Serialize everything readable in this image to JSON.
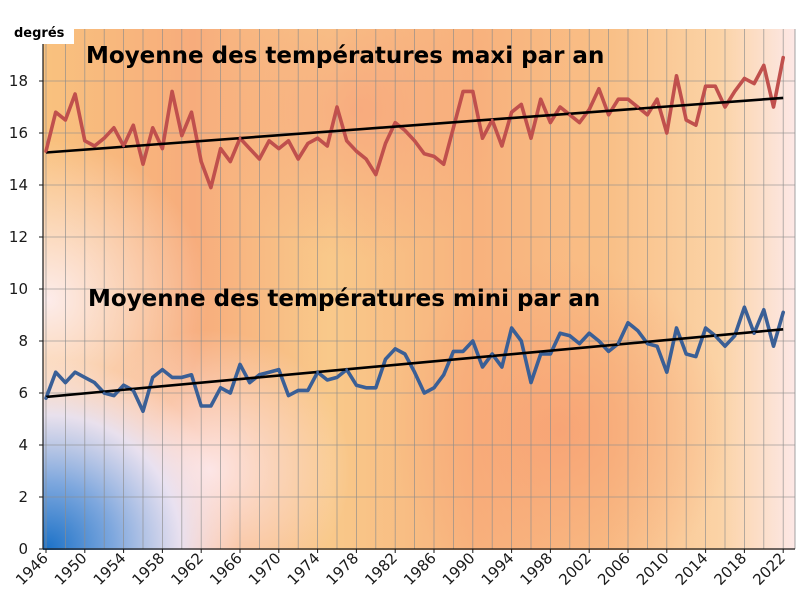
{
  "chart_data": {
    "type": "line",
    "ylabel": "degrés",
    "ylim": [
      0,
      20
    ],
    "yticks": [
      0,
      2,
      4,
      6,
      8,
      10,
      12,
      14,
      16,
      18
    ],
    "xlim": [
      1946,
      2023
    ],
    "xticks": [
      1946,
      1950,
      1954,
      1958,
      1962,
      1966,
      1970,
      1974,
      1978,
      1982,
      1986,
      1990,
      1994,
      1998,
      2002,
      2006,
      2010,
      2014,
      2018,
      2022
    ],
    "grid": true,
    "series": [
      {
        "name": "Moyenne des températures maxi par an",
        "color": "#c0504d",
        "x_start": 1946,
        "values": [
          15.3,
          16.8,
          16.5,
          17.5,
          15.7,
          15.5,
          15.8,
          16.2,
          15.5,
          16.3,
          14.8,
          16.2,
          15.4,
          17.6,
          15.9,
          16.8,
          14.9,
          13.9,
          15.4,
          14.9,
          15.8,
          15.4,
          15.0,
          15.7,
          15.4,
          15.7,
          15.0,
          15.6,
          15.8,
          15.5,
          17.0,
          15.7,
          15.3,
          15.0,
          14.4,
          15.6,
          16.4,
          16.1,
          15.7,
          15.2,
          15.1,
          14.8,
          16.2,
          17.6,
          17.6,
          15.8,
          16.5,
          15.5,
          16.8,
          17.1,
          15.8,
          17.3,
          16.4,
          17.0,
          16.7,
          16.4,
          16.9,
          17.7,
          16.7,
          17.3,
          17.3,
          17.0,
          16.7,
          17.3,
          16.0,
          18.2,
          16.5,
          16.3,
          17.8,
          17.8,
          17.0,
          17.6,
          18.1,
          17.9,
          18.6,
          17.0,
          18.9
        ],
        "trend": [
          15.25,
          17.35
        ]
      },
      {
        "name": "Moyenne des températures mini par an",
        "color": "#3a5f96",
        "x_start": 1946,
        "values": [
          5.8,
          6.8,
          6.4,
          6.8,
          6.6,
          6.4,
          6.0,
          5.9,
          6.3,
          6.1,
          5.3,
          6.6,
          6.9,
          6.6,
          6.6,
          6.7,
          5.5,
          5.5,
          6.2,
          6.0,
          7.1,
          6.4,
          6.7,
          6.8,
          6.9,
          5.9,
          6.1,
          6.1,
          6.8,
          6.5,
          6.6,
          6.9,
          6.3,
          6.2,
          6.2,
          7.3,
          7.7,
          7.5,
          6.8,
          6.0,
          6.2,
          6.7,
          7.6,
          7.6,
          8.0,
          7.0,
          7.5,
          7.0,
          8.5,
          8.0,
          6.4,
          7.5,
          7.5,
          8.3,
          8.2,
          7.9,
          8.3,
          8.0,
          7.6,
          7.9,
          8.7,
          8.4,
          7.9,
          7.8,
          6.8,
          8.5,
          7.5,
          7.4,
          8.5,
          8.2,
          7.8,
          8.2,
          9.3,
          8.3,
          9.2,
          7.8,
          9.1
        ],
        "trend": [
          5.85,
          8.45
        ]
      }
    ]
  }
}
